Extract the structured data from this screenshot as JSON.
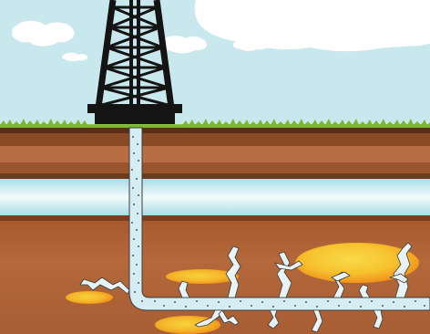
{
  "diagram": {
    "kind": "illustration",
    "subject": "hydraulic-fracturing-well-cross-section",
    "colors": {
      "sky": "#c9e8ee",
      "cloud": "#ffffff",
      "derrick": "#141414",
      "grass": "#8cc63f",
      "soil_dark": "#6e3a1e",
      "soil_light": "#b9704a",
      "aquifer": "#a9dde6",
      "aquifer_light": "#e8f7fa",
      "shale": "#b56a3a",
      "shale_dark": "#9b542a",
      "wellbore": "#d4eef3",
      "oil_outer": "#f39a1c",
      "oil_inner": "#f7c831",
      "fracture": "#e8f3f5"
    },
    "elements": [
      "sky",
      "clouds",
      "drilling-derrick",
      "grass-surface",
      "soil-layers",
      "aquifer-layer",
      "shale-layer",
      "vertical-wellbore",
      "horizontal-wellbore",
      "oil-pockets",
      "fractures"
    ]
  }
}
